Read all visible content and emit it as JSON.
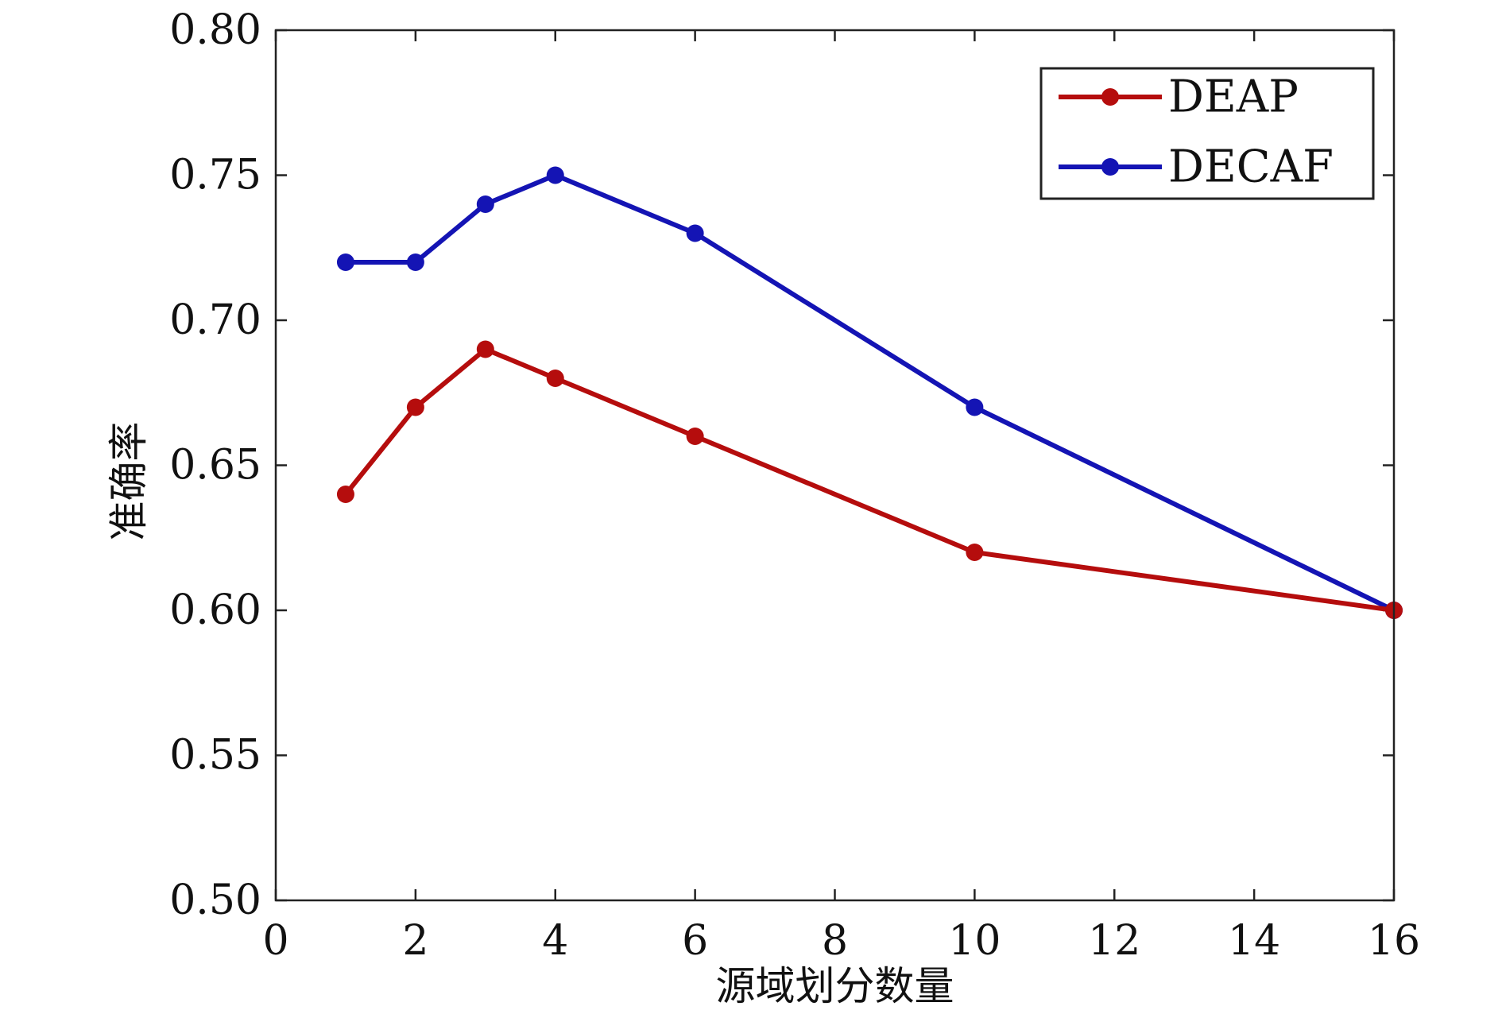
{
  "chart_data": {
    "type": "line",
    "xlabel": "源域划分数量",
    "ylabel": "准确率",
    "xlim": [
      0,
      16
    ],
    "ylim": [
      0.5,
      0.8
    ],
    "xticks": [
      "0",
      "2",
      "4",
      "6",
      "8",
      "10",
      "12",
      "14",
      "16"
    ],
    "yticks": [
      "0.50",
      "0.55",
      "0.60",
      "0.65",
      "0.70",
      "0.75",
      "0.80"
    ],
    "x": [
      1,
      2,
      3,
      4,
      6,
      10,
      16
    ],
    "series": [
      {
        "name": "DEAP",
        "color": "#b50d0d",
        "values": [
          0.64,
          0.67,
          0.69,
          0.68,
          0.66,
          0.62,
          0.6
        ]
      },
      {
        "name": "DECAF",
        "color": "#1414b4",
        "values": [
          0.72,
          0.72,
          0.74,
          0.75,
          0.73,
          0.67,
          0.6
        ]
      }
    ],
    "grid": false,
    "legend_position": "top-right"
  }
}
